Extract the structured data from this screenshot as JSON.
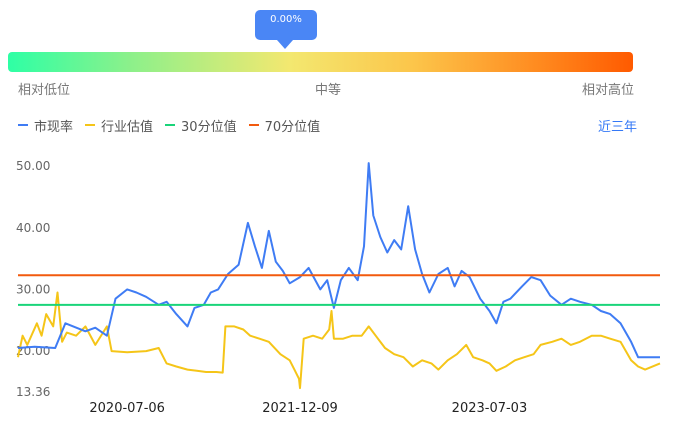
{
  "gauge": {
    "value_label": "0.00%",
    "percentile": 0.0,
    "low_label": "相对低位",
    "mid_label": "中等",
    "high_label": "相对高位"
  },
  "period_button": "近三年",
  "colors": {
    "pe": "#3f7cf4",
    "industry": "#f5c518",
    "p30": "#1ad47a",
    "p70": "#f25a0e",
    "accent": "#3478f6"
  },
  "chart_data": {
    "type": "line",
    "x_tick_labels": [
      "2020-07-06",
      "2021-12-09",
      "2023-07-03"
    ],
    "x_range": [
      "2019-08-12",
      "2024-11-28"
    ],
    "x_ticks": [
      "2020-07-06",
      "2021-12-09",
      "2023-07-03"
    ],
    "y_tick_labels": [
      "50.00",
      "40.00",
      "30.00",
      "20.00",
      "13.36"
    ],
    "y_ticks": [
      50,
      40,
      30,
      20,
      13.36
    ],
    "ylim": [
      13.36,
      51
    ],
    "grid": false,
    "legend_position": "top-left",
    "series": [
      {
        "name": "市现率",
        "color_key": "pe",
        "points": [
          [
            "2019-08-12",
            20.5
          ],
          [
            "2019-10-01",
            20.7
          ],
          [
            "2019-12-02",
            20.5
          ],
          [
            "2020-01-02",
            24.5
          ],
          [
            "2020-03-02",
            23.2
          ],
          [
            "2020-04-01",
            23.8
          ],
          [
            "2020-05-06",
            22.5
          ],
          [
            "2020-06-01",
            28.5
          ],
          [
            "2020-07-06",
            30.0
          ],
          [
            "2020-08-03",
            29.5
          ],
          [
            "2020-09-01",
            28.8
          ],
          [
            "2020-10-09",
            27.5
          ],
          [
            "2020-11-02",
            28.0
          ],
          [
            "2020-12-01",
            26.0
          ],
          [
            "2021-01-04",
            24.0
          ],
          [
            "2021-01-25",
            27.0
          ],
          [
            "2021-02-22",
            27.5
          ],
          [
            "2021-03-15",
            29.5
          ],
          [
            "2021-04-06",
            30.0
          ],
          [
            "2021-05-06",
            32.5
          ],
          [
            "2021-06-07",
            34.0
          ],
          [
            "2021-07-05",
            40.8
          ],
          [
            "2021-07-26",
            37.0
          ],
          [
            "2021-08-16",
            33.5
          ],
          [
            "2021-09-06",
            39.5
          ],
          [
            "2021-09-27",
            34.5
          ],
          [
            "2021-10-18",
            33.0
          ],
          [
            "2021-11-08",
            31.0
          ],
          [
            "2021-12-09",
            32.0
          ],
          [
            "2022-01-04",
            33.5
          ],
          [
            "2022-02-08",
            30.0
          ],
          [
            "2022-03-01",
            31.5
          ],
          [
            "2022-03-21",
            27.0
          ],
          [
            "2022-04-11",
            31.5
          ],
          [
            "2022-05-05",
            33.5
          ],
          [
            "2022-06-01",
            31.5
          ],
          [
            "2022-06-20",
            37.0
          ],
          [
            "2022-07-04",
            50.5
          ],
          [
            "2022-07-18",
            42.0
          ],
          [
            "2022-08-08",
            38.5
          ],
          [
            "2022-08-29",
            36.0
          ],
          [
            "2022-09-19",
            38.0
          ],
          [
            "2022-10-10",
            36.5
          ],
          [
            "2022-10-31",
            43.5
          ],
          [
            "2022-11-21",
            36.5
          ],
          [
            "2022-12-12",
            32.5
          ],
          [
            "2023-01-03",
            29.5
          ],
          [
            "2023-01-30",
            32.5
          ],
          [
            "2023-02-27",
            33.5
          ],
          [
            "2023-03-20",
            30.5
          ],
          [
            "2023-04-10",
            33.0
          ],
          [
            "2023-05-04",
            32.0
          ],
          [
            "2023-06-05",
            28.5
          ],
          [
            "2023-07-03",
            26.5
          ],
          [
            "2023-07-24",
            24.5
          ],
          [
            "2023-08-14",
            28.0
          ],
          [
            "2023-09-04",
            28.5
          ],
          [
            "2023-10-09",
            30.5
          ],
          [
            "2023-11-06",
            32.0
          ],
          [
            "2023-12-04",
            31.5
          ],
          [
            "2024-01-02",
            29.0
          ],
          [
            "2024-02-05",
            27.5
          ],
          [
            "2024-03-04",
            28.5
          ],
          [
            "2024-04-01",
            28.0
          ],
          [
            "2024-05-06",
            27.5
          ],
          [
            "2024-06-03",
            26.5
          ],
          [
            "2024-07-01",
            26.0
          ],
          [
            "2024-08-01",
            24.5
          ],
          [
            "2024-09-02",
            21.5
          ],
          [
            "2024-09-23",
            19.0
          ],
          [
            "2024-10-14",
            19.0
          ],
          [
            "2024-11-28",
            19.0
          ]
        ]
      },
      {
        "name": "行业估值",
        "color_key": "industry",
        "points": [
          [
            "2019-08-12",
            19.0
          ],
          [
            "2019-08-26",
            22.5
          ],
          [
            "2019-09-09",
            21.0
          ],
          [
            "2019-10-08",
            24.5
          ],
          [
            "2019-10-22",
            22.5
          ],
          [
            "2019-11-05",
            26.0
          ],
          [
            "2019-11-26",
            24.0
          ],
          [
            "2019-12-09",
            29.5
          ],
          [
            "2019-12-23",
            21.5
          ],
          [
            "2020-01-06",
            23.0
          ],
          [
            "2020-02-03",
            22.5
          ],
          [
            "2020-03-02",
            24.0
          ],
          [
            "2020-04-01",
            21.0
          ],
          [
            "2020-05-06",
            24.0
          ],
          [
            "2020-05-20",
            20.0
          ],
          [
            "2020-07-06",
            19.8
          ],
          [
            "2020-09-01",
            20.0
          ],
          [
            "2020-10-09",
            20.5
          ],
          [
            "2020-11-02",
            18.0
          ],
          [
            "2020-12-01",
            17.5
          ],
          [
            "2021-01-04",
            17.0
          ],
          [
            "2021-02-01",
            16.8
          ],
          [
            "2021-03-01",
            16.6
          ],
          [
            "2021-04-01",
            16.6
          ],
          [
            "2021-04-20",
            16.5
          ],
          [
            "2021-04-28",
            24.0
          ],
          [
            "2021-05-25",
            24.0
          ],
          [
            "2021-06-21",
            23.5
          ],
          [
            "2021-07-12",
            22.5
          ],
          [
            "2021-08-09",
            22.0
          ],
          [
            "2021-09-06",
            21.5
          ],
          [
            "2021-10-11",
            19.5
          ],
          [
            "2021-11-08",
            18.5
          ],
          [
            "2021-11-22",
            17.0
          ],
          [
            "2021-12-06",
            15.5
          ],
          [
            "2021-12-09",
            14.0
          ],
          [
            "2021-12-20",
            22.0
          ],
          [
            "2022-01-17",
            22.5
          ],
          [
            "2022-02-14",
            22.0
          ],
          [
            "2022-03-07",
            23.5
          ],
          [
            "2022-03-14",
            26.5
          ],
          [
            "2022-03-21",
            22.0
          ],
          [
            "2022-04-18",
            22.0
          ],
          [
            "2022-05-16",
            22.5
          ],
          [
            "2022-06-13",
            22.5
          ],
          [
            "2022-07-04",
            24.0
          ],
          [
            "2022-07-25",
            22.5
          ],
          [
            "2022-08-22",
            20.5
          ],
          [
            "2022-09-19",
            19.5
          ],
          [
            "2022-10-17",
            19.0
          ],
          [
            "2022-11-14",
            17.5
          ],
          [
            "2022-12-12",
            18.5
          ],
          [
            "2023-01-09",
            18.0
          ],
          [
            "2023-01-30",
            17.0
          ],
          [
            "2023-02-27",
            18.5
          ],
          [
            "2023-03-27",
            19.5
          ],
          [
            "2023-04-24",
            21.0
          ],
          [
            "2023-05-15",
            19.0
          ],
          [
            "2023-06-12",
            18.5
          ],
          [
            "2023-07-03",
            18.0
          ],
          [
            "2023-07-24",
            16.8
          ],
          [
            "2023-08-21",
            17.5
          ],
          [
            "2023-09-18",
            18.5
          ],
          [
            "2023-10-16",
            19.0
          ],
          [
            "2023-11-13",
            19.5
          ],
          [
            "2023-12-04",
            21.0
          ],
          [
            "2024-01-08",
            21.5
          ],
          [
            "2024-02-05",
            22.0
          ],
          [
            "2024-03-04",
            21.0
          ],
          [
            "2024-04-01",
            21.5
          ],
          [
            "2024-05-06",
            22.5
          ],
          [
            "2024-06-03",
            22.5
          ],
          [
            "2024-07-01",
            22.0
          ],
          [
            "2024-08-01",
            21.5
          ],
          [
            "2024-09-02",
            18.5
          ],
          [
            "2024-09-23",
            17.5
          ],
          [
            "2024-10-14",
            17.0
          ],
          [
            "2024-11-28",
            18.0
          ]
        ]
      },
      {
        "name": "30分位值",
        "color_key": "p30",
        "value": 27.5
      },
      {
        "name": "70分位值",
        "color_key": "p70",
        "value": 32.3
      }
    ]
  }
}
